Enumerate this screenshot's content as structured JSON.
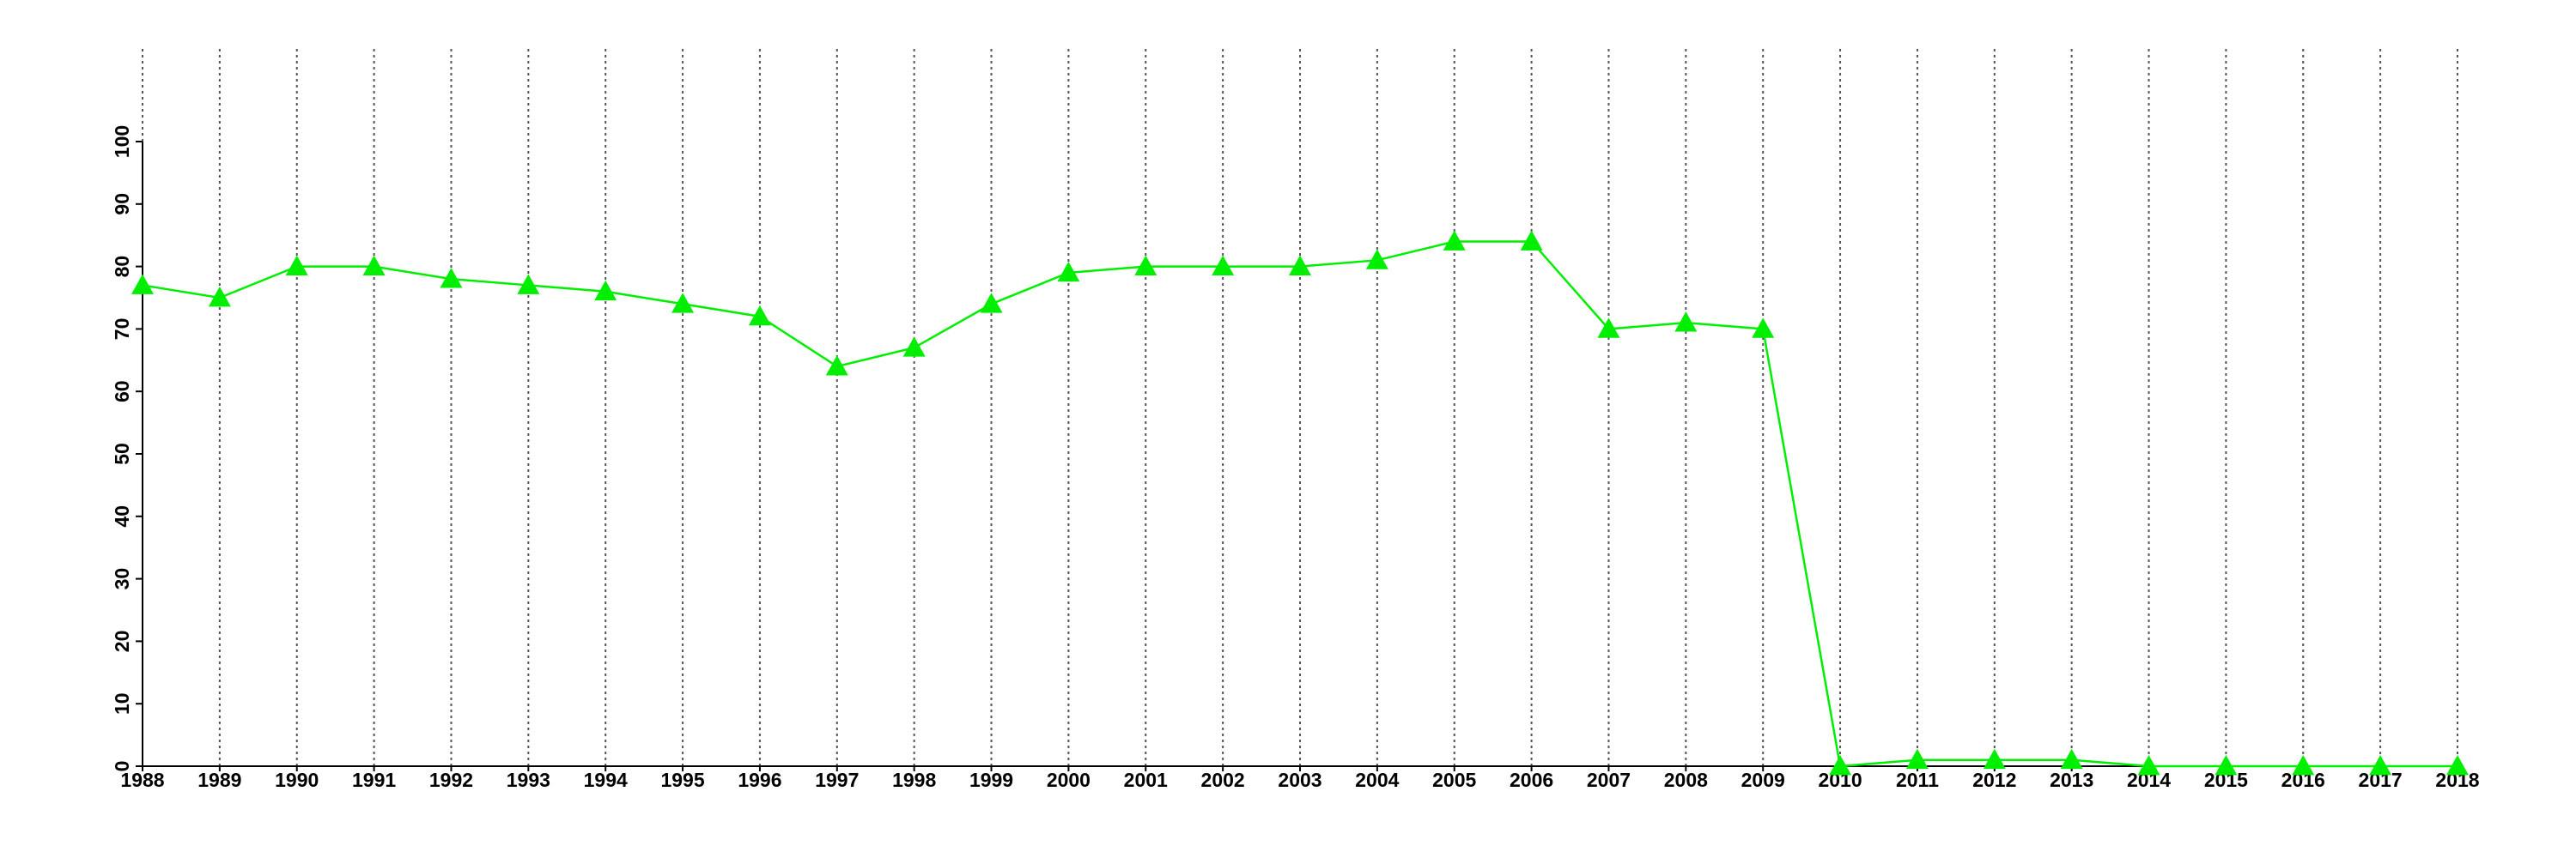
{
  "chart_data": {
    "type": "line",
    "x": [
      1988,
      1989,
      1990,
      1991,
      1992,
      1993,
      1994,
      1995,
      1996,
      1997,
      1998,
      1999,
      2000,
      2001,
      2002,
      2003,
      2004,
      2005,
      2006,
      2007,
      2008,
      2009,
      2010,
      2011,
      2012,
      2013,
      2014,
      2015,
      2016,
      2017,
      2018
    ],
    "series": [
      {
        "color": "#00ee00",
        "values": [
          77,
          75,
          80,
          80,
          78,
          77,
          76,
          74,
          72,
          64,
          67,
          74,
          79,
          80,
          80,
          80,
          81,
          84,
          84,
          70,
          71,
          70,
          0,
          1,
          1,
          1,
          0,
          0,
          0,
          0,
          0
        ]
      }
    ],
    "xlim": [
      1988,
      2018
    ],
    "xticks": [
      1988,
      1989,
      1990,
      1991,
      1992,
      1993,
      1994,
      1995,
      1996,
      1997,
      1998,
      1999,
      2000,
      2001,
      2002,
      2003,
      2004,
      2005,
      2006,
      2007,
      2008,
      2009,
      2010,
      2011,
      2012,
      2013,
      2014,
      2015,
      2016,
      2017,
      2018
    ],
    "ylim": [
      0,
      100
    ],
    "yticks": [
      0,
      10,
      20,
      30,
      40,
      50,
      60,
      70,
      80,
      90,
      100
    ],
    "grid": true,
    "marker": "triangle"
  }
}
